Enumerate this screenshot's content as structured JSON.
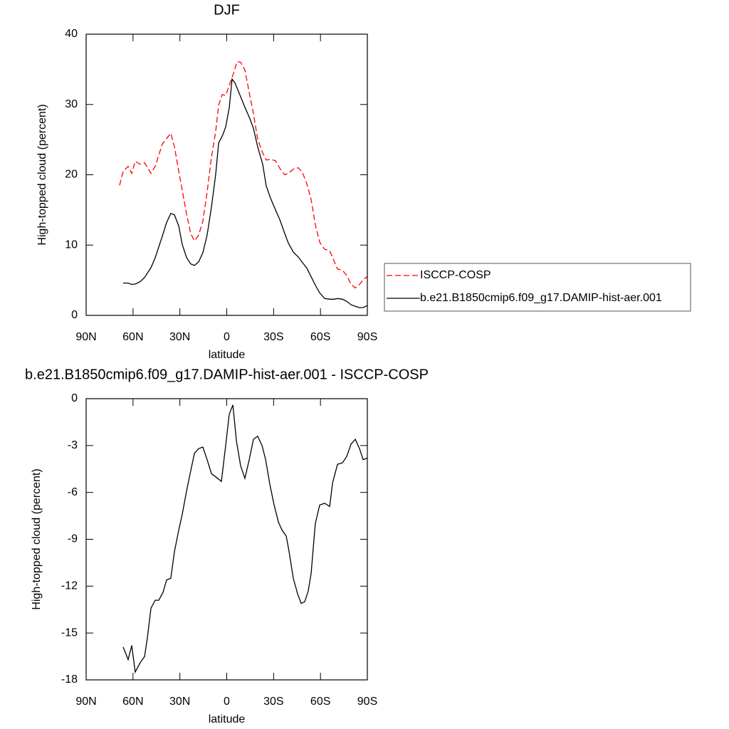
{
  "chart_data": [
    {
      "type": "line",
      "title": "DJF",
      "xlabel": "latitude",
      "ylabel": "High-topped cloud (percent)",
      "xlim": [
        90,
        -90
      ],
      "xticks": [
        {
          "value": 90,
          "label": "90N"
        },
        {
          "value": 60,
          "label": "60N"
        },
        {
          "value": 30,
          "label": "30N"
        },
        0,
        {
          "value": -30,
          "label": "30S"
        },
        {
          "value": -60,
          "label": "60S"
        },
        {
          "value": -90,
          "label": "90S"
        }
      ],
      "ylim": [
        0,
        40
      ],
      "yticks": [
        0,
        10,
        20,
        30,
        40
      ],
      "legend": "right",
      "series": [
        {
          "name": "ISCCP-COSP",
          "color": "#ff0000",
          "linestyle": "dashed",
          "x": [
            68.6,
            66.3,
            63.1,
            60.8,
            58.6,
            55.4,
            52.6,
            48.5,
            45.8,
            41.2,
            35.8,
            33.5,
            30.7,
            25.7,
            23.0,
            20.7,
            18.0,
            15.3,
            12.6,
            9.8,
            7.1,
            5.2,
            2.9,
            0.7,
            -1.6,
            -4.3,
            -6.6,
            -8.9,
            -11.6,
            -14.4,
            -17.1,
            -19.8,
            -23.0,
            -25.3,
            -28.0,
            -31.2,
            -34.0,
            -37.2,
            -39.4,
            -42.6,
            -45.8,
            -48.5,
            -51.3,
            -54.0,
            -56.7,
            -59.5,
            -62.7,
            -65.9,
            -68.6,
            -70.9,
            -74.1,
            -76.8,
            -79.6,
            -82.3,
            -85.0,
            -87.3,
            -90
          ],
          "values": [
            18.5,
            20.5,
            21.2,
            20.2,
            21.9,
            21.5,
            21.7,
            20.2,
            21.2,
            24.4,
            25.9,
            24.0,
            20.5,
            14.4,
            11.6,
            10.6,
            11.4,
            13.4,
            17.5,
            22.5,
            26.1,
            29.9,
            31.4,
            31.3,
            32.7,
            34.4,
            36.1,
            36.0,
            34.9,
            31.7,
            28.7,
            25.1,
            23.1,
            22.1,
            22.2,
            22.0,
            20.9,
            20.0,
            20.2,
            20.8,
            21.0,
            20.3,
            18.7,
            16.5,
            12.9,
            10.4,
            9.4,
            9.2,
            7.8,
            6.6,
            6.4,
            5.7,
            4.4,
            3.9,
            4.4,
            5.1,
            5.5
          ]
        },
        {
          "name": "b.e21.B1850cmip6.f09_g17.DAMIP-hist-aer.001",
          "color": "#000000",
          "linestyle": "solid",
          "x": [
            66.3,
            63.1,
            60.8,
            58.1,
            55.4,
            52.6,
            48.5,
            45.8,
            41.2,
            38.5,
            35.8,
            33.5,
            30.7,
            28.5,
            25.7,
            23.0,
            20.7,
            18.0,
            15.3,
            12.6,
            9.8,
            7.1,
            5.2,
            2.5,
            0.7,
            -1.6,
            -3.4,
            -5.2,
            -8.9,
            -11.6,
            -14.4,
            -17.1,
            -19.8,
            -23.0,
            -25.3,
            -28.0,
            -31.2,
            -34.0,
            -37.2,
            -39.4,
            -42.6,
            -45.8,
            -48.5,
            -51.3,
            -54.0,
            -56.7,
            -59.5,
            -62.7,
            -65.9,
            -68.6,
            -70.9,
            -74.1,
            -76.8,
            -79.6,
            -82.3,
            -85.0,
            -87.3,
            -90
          ],
          "values": [
            4.6,
            4.6,
            4.4,
            4.5,
            4.8,
            5.4,
            6.8,
            8.2,
            11.3,
            13.2,
            14.5,
            14.3,
            12.7,
            10.1,
            8.2,
            7.3,
            7.1,
            7.6,
            8.9,
            11.4,
            15.4,
            20.0,
            24.5,
            25.7,
            26.8,
            29.5,
            33.6,
            33.1,
            31.1,
            29.6,
            28.2,
            26.6,
            24.0,
            21.5,
            18.4,
            16.7,
            15.0,
            13.6,
            11.6,
            10.3,
            9.0,
            8.3,
            7.5,
            6.7,
            5.5,
            4.3,
            3.2,
            2.4,
            2.3,
            2.3,
            2.4,
            2.3,
            2.0,
            1.5,
            1.3,
            1.1,
            1.1,
            1.4
          ]
        }
      ]
    },
    {
      "type": "line",
      "title": "b.e21.B1850cmip6.f09_g17.DAMIP-hist-aer.001 - ISCCP-COSP",
      "xlabel": "latitude",
      "ylabel": "High-topped cloud (percent)",
      "xlim": [
        90,
        -90
      ],
      "xticks": [
        {
          "value": 90,
          "label": "90N"
        },
        {
          "value": 60,
          "label": "60N"
        },
        {
          "value": 30,
          "label": "30N"
        },
        0,
        {
          "value": -30,
          "label": "30S"
        },
        {
          "value": -60,
          "label": "60S"
        },
        {
          "value": -90,
          "label": "90S"
        }
      ],
      "ylim": [
        -18,
        0
      ],
      "yticks": [
        0,
        -3,
        -6,
        -9,
        -12,
        -15,
        -18
      ],
      "series": [
        {
          "color": "#000000",
          "linestyle": "solid",
          "x": [
            66.3,
            63.1,
            60.8,
            58.6,
            55.4,
            52.6,
            50.8,
            48.5,
            45.8,
            43.5,
            40.8,
            38.5,
            35.8,
            33.5,
            30.7,
            28.5,
            25.7,
            23.0,
            20.7,
            18.0,
            15.3,
            12.6,
            9.8,
            7.1,
            3.4,
            0.7,
            -1.6,
            -3.9,
            -6.2,
            -8.9,
            -11.6,
            -14.4,
            -17.1,
            -19.8,
            -22.6,
            -24.9,
            -27.6,
            -30.3,
            -33.1,
            -35.3,
            -38.1,
            -39.9,
            -42.6,
            -45.4,
            -47.6,
            -49.9,
            -52.2,
            -54.0,
            -56.7,
            -59.5,
            -62.7,
            -65.9,
            -67.7,
            -70.9,
            -74.1,
            -76.8,
            -79.6,
            -82.3,
            -85.0,
            -87.3,
            -90
          ],
          "values": [
            -15.9,
            -16.7,
            -15.8,
            -17.5,
            -16.9,
            -16.5,
            -15.3,
            -13.4,
            -12.9,
            -12.9,
            -12.4,
            -11.6,
            -11.5,
            -9.8,
            -8.4,
            -7.4,
            -5.9,
            -4.6,
            -3.5,
            -3.2,
            -3.1,
            -3.9,
            -4.8,
            -5.0,
            -5.3,
            -3.0,
            -1.0,
            -0.4,
            -2.7,
            -4.3,
            -5.1,
            -3.9,
            -2.6,
            -2.4,
            -3.0,
            -3.9,
            -5.5,
            -6.8,
            -7.9,
            -8.4,
            -8.8,
            -9.8,
            -11.5,
            -12.5,
            -13.1,
            -13.0,
            -12.3,
            -11.2,
            -8.0,
            -6.8,
            -6.7,
            -6.9,
            -5.4,
            -4.2,
            -4.1,
            -3.7,
            -2.9,
            -2.6,
            -3.2,
            -3.9,
            -3.8
          ]
        }
      ]
    }
  ]
}
